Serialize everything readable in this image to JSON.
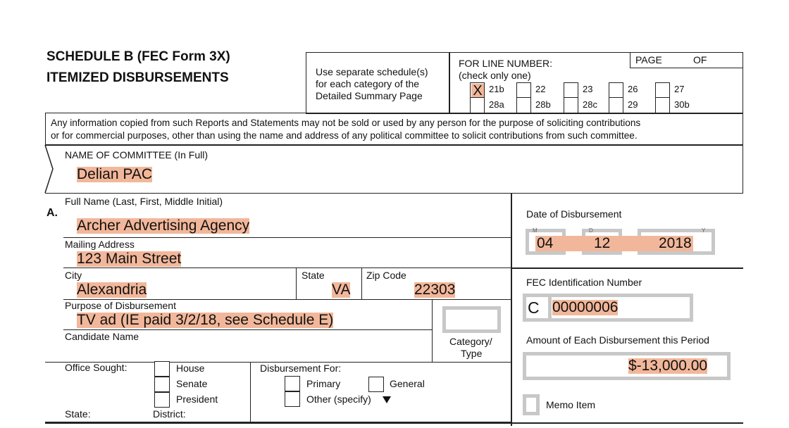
{
  "header": {
    "title_line1": "SCHEDULE B   (FEC Form 3X)",
    "title_line2": "ITEMIZED DISBURSEMENTS",
    "instructions": [
      "Use separate schedule(s)",
      "for each category of the",
      "Detailed Summary Page"
    ],
    "line_number_label": "FOR LINE NUMBER:",
    "line_number_hint": "(check only one)",
    "page_label": "PAGE",
    "of_label": "OF",
    "line_options": [
      {
        "label": "21b",
        "checked": true,
        "mark": "X"
      },
      {
        "label": "22",
        "checked": false
      },
      {
        "label": "23",
        "checked": false
      },
      {
        "label": "26",
        "checked": false
      },
      {
        "label": "27",
        "checked": false
      },
      {
        "label": "28a",
        "checked": false
      },
      {
        "label": "28b",
        "checked": false
      },
      {
        "label": "28c",
        "checked": false
      },
      {
        "label": "29",
        "checked": false
      },
      {
        "label": "30b",
        "checked": false
      }
    ]
  },
  "notice": [
    "Any information copied from such Reports and Statements may not be sold or used by any person for the purpose of soliciting contributions",
    "or for commercial purposes, other than using the name and address of any political committee to solicit contributions from such committee."
  ],
  "committee": {
    "label": "NAME OF COMMITTEE (In Full)",
    "value": "Delian PAC"
  },
  "entry": {
    "section": "A.",
    "full_name_label": "Full Name (Last, First, Middle Initial)",
    "full_name": "Archer Advertising Agency",
    "mailing_label": "Mailing Address",
    "mailing": "123 Main Street",
    "city_label": "City",
    "city": "Alexandria",
    "state_label": "State",
    "state": "VA",
    "zip_label": "Zip Code",
    "zip": "22303",
    "purpose_label": "Purpose of Disbursement",
    "purpose": "TV ad (IE paid 3/2/18, see Schedule E)",
    "candidate_label": "Candidate Name",
    "category_label1": "Category/",
    "category_label2": "Type",
    "office_label": "Office Sought:",
    "office_options": [
      "House",
      "Senate",
      "President"
    ],
    "state2_label": "State:",
    "district_label": "District:",
    "disb_for_label": "Disbursement For:",
    "primary_label": "Primary",
    "general_label": "General",
    "other_label": "Other (specify)",
    "date_label": "Date of Disbursement",
    "date_mm": "04",
    "date_dd": "12",
    "date_yyyy": "2018",
    "date_hints": {
      "m": "M",
      "d": "D",
      "y": "Y"
    },
    "fec_label": "FEC Identification Number",
    "fec_prefix": "C",
    "fec_id": "00000006",
    "amount_label": "Amount of Each Disbursement this Period",
    "amount": "$-13,000.00",
    "memo_label": "Memo Item"
  }
}
